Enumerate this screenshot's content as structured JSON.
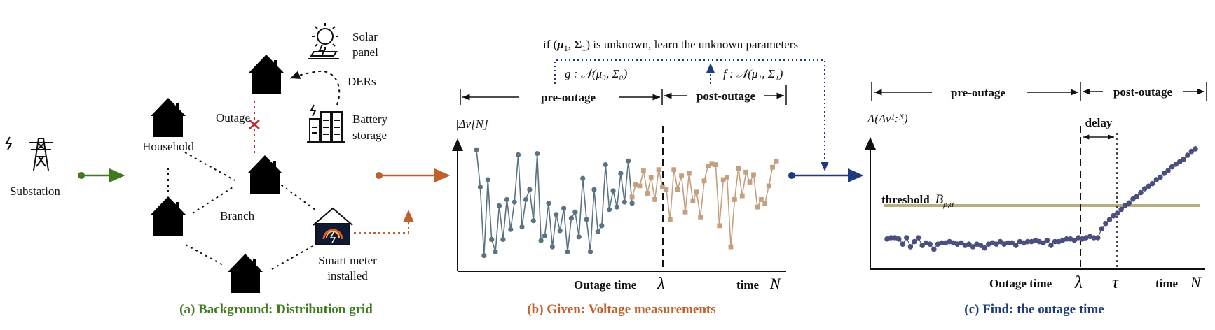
{
  "panel_a": {
    "caption": "(a) Background: Distribution grid",
    "caption_color": "#3f7a1f",
    "substation": "Substation",
    "household": "Household",
    "outage": "Outage",
    "branch": "Branch",
    "solar_1": "Solar",
    "solar_2": "panel",
    "ders": "DERs",
    "battery_1": "Battery",
    "battery_2": "storage",
    "meter_1": "Smart meter",
    "meter_2": "installed"
  },
  "panel_b": {
    "caption": "(b) Given: Voltage measurements",
    "caption_color": "#c0612b",
    "top_note_a": "if (",
    "top_note_mu": "μ",
    "top_note_sub1": "1",
    "top_note_comma": ", ",
    "top_note_sigma": "Σ",
    "top_note_sub2": "1",
    "top_note_b": ") is unknown, learn the unknown parameters",
    "g_dist": "g : 𝒩(μ₀, Σ₀)",
    "f_dist": "f : 𝒩(μ₁, Σ₁)",
    "pre_outage": "pre-outage",
    "post_outage": "post-outage",
    "ylabel": "|Δv[N]|",
    "outage_time": "Outage time",
    "lambda": "λ",
    "time": "time",
    "N": "N",
    "pre_color": "#5a7380",
    "post_color": "#c4a07e"
  },
  "panel_c": {
    "caption": "(c) Find: the outage time",
    "caption_color": "#1f3a7a",
    "pre_outage": "pre-outage",
    "post_outage": "post-outage",
    "ylabel": "Λ(Δv¹:ᴺ)",
    "delay": "delay",
    "threshold": "threshold",
    "threshold_sym": "B",
    "threshold_sub": "ρ,α",
    "outage_time": "Outage time",
    "lambda": "λ",
    "tau": "τ",
    "time": "time",
    "N": "N",
    "curve_color": "#4b4f7e",
    "threshold_color": "#b8b07c"
  },
  "chart_data": [
    {
      "type": "line",
      "series": [
        {
          "x": [
            1,
            2,
            3,
            4,
            5,
            6,
            7,
            8,
            9,
            10,
            11,
            12,
            13,
            14,
            15,
            16,
            17,
            18,
            19,
            20,
            21,
            22,
            23,
            24,
            25,
            26,
            27,
            28,
            29,
            30,
            31,
            32,
            33,
            34,
            35,
            36,
            37,
            38,
            39,
            40,
            41,
            42
          ],
          "values": [
            0.92,
            0.62,
            0.07,
            0.68,
            0.2,
            0.1,
            0.47,
            0.2,
            0.52,
            0.28,
            0.5,
            0.88,
            0.3,
            0.52,
            0.6,
            0.35,
            0.89,
            0.19,
            0.23,
            0.49,
            0.14,
            0.4,
            0.27,
            0.45,
            0.1,
            0.37,
            0.42,
            0.22,
            0.69,
            0.36,
            0.1,
            0.6,
            0.26,
            0.31,
            0.8,
            0.44,
            0.59,
            0.46,
            0.73,
            0.5,
            0.83,
            0.49
          ]
        },
        {
          "x": [
            42,
            43,
            44,
            45,
            46,
            47,
            48,
            49,
            50,
            51,
            52,
            53,
            54,
            55,
            56,
            57,
            58,
            59,
            60,
            61,
            62,
            63,
            64,
            65,
            66,
            67,
            68,
            69,
            70,
            71,
            72,
            73,
            74,
            75,
            76,
            77,
            78,
            79,
            80
          ],
          "values": [
            0.54,
            0.64,
            0.63,
            0.75,
            0.57,
            0.7,
            0.52,
            0.76,
            0.62,
            0.6,
            0.36,
            0.76,
            0.6,
            0.71,
            0.42,
            0.73,
            0.51,
            0.58,
            0.38,
            0.67,
            0.79,
            0.81,
            0.8,
            0.31,
            0.68,
            0.7,
            0.14,
            0.52,
            0.77,
            0.55,
            0.74,
            0.66,
            0.72,
            0.46,
            0.52,
            0.49,
            0.63,
            0.78,
            0.83
          ]
        }
      ],
      "xlabel": "time N",
      "ylabel": "|Δv[N]|",
      "annotations": [
        "Outage time λ"
      ],
      "grid": false
    },
    {
      "type": "scatter",
      "series": [
        {
          "x": [
            1,
            2,
            3,
            4,
            5,
            6,
            7,
            8,
            9,
            10,
            11,
            12,
            13,
            14,
            15,
            16,
            17,
            18,
            19,
            20,
            21,
            22,
            23,
            24,
            25,
            26,
            27,
            28,
            29,
            30,
            31,
            32,
            33,
            34,
            35,
            36,
            37,
            38,
            39,
            40,
            41,
            42,
            43,
            44,
            45,
            46,
            47,
            48,
            49,
            50,
            51,
            52,
            53,
            54,
            55,
            56,
            57,
            58,
            59,
            60,
            61,
            62,
            63,
            64,
            65,
            66,
            67,
            68,
            69,
            70,
            71,
            72,
            73,
            74,
            75,
            76,
            77,
            78,
            79,
            80
          ],
          "values": [
            0.18,
            0.19,
            0.19,
            0.18,
            0.14,
            0.19,
            0.12,
            0.16,
            0.19,
            0.13,
            0.15,
            0.14,
            0.1,
            0.14,
            0.15,
            0.15,
            0.16,
            0.15,
            0.14,
            0.15,
            0.13,
            0.14,
            0.12,
            0.14,
            0.13,
            0.11,
            0.14,
            0.15,
            0.14,
            0.16,
            0.14,
            0.15,
            0.15,
            0.13,
            0.16,
            0.15,
            0.16,
            0.16,
            0.17,
            0.16,
            0.15,
            0.17,
            0.13,
            0.16,
            0.16,
            0.17,
            0.18,
            0.18,
            0.17,
            0.19,
            0.18,
            0.19,
            0.2,
            0.19,
            0.19,
            0.26,
            0.3,
            0.33,
            0.36,
            0.38,
            0.41,
            0.44,
            0.46,
            0.49,
            0.51,
            0.54,
            0.57,
            0.59,
            0.61,
            0.64,
            0.66,
            0.69,
            0.71,
            0.74,
            0.76,
            0.78,
            0.8,
            0.83,
            0.86,
            0.88
          ]
        }
      ],
      "threshold_level": 0.44,
      "xlabel": "time N",
      "ylabel": "Λ(Δv¹:ᴺ)",
      "annotations": [
        "Outage time λ",
        "τ",
        "delay",
        "threshold B_{ρ,α}"
      ],
      "grid": false
    }
  ]
}
